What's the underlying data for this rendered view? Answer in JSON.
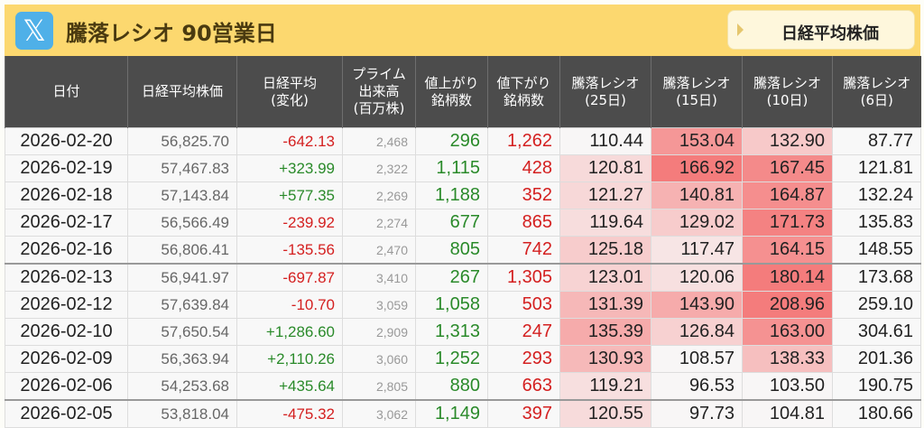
{
  "banner": {
    "logo": "x-logo",
    "title": "騰落レシオ 90営業日",
    "nav_button": "日経平均株価"
  },
  "headers": [
    "日付",
    "日経平均株価",
    "日経平均\n(変化)",
    "プライム\n出来高\n(百万株)",
    "値上がり\n銘柄数",
    "値下がり\n銘柄数",
    "騰落レシオ\n(25日)",
    "騰落レシオ\n(15日)",
    "騰落レシオ\n(10日)",
    "騰落レシオ\n(6日)"
  ],
  "colors": {
    "header_bg": "#4c4c4c",
    "banner_bg": "#fcd86f",
    "up": "#2a8a2a",
    "down": "#d42020",
    "heat_high": "#f47c7c",
    "heat_low": "#e6e8f5"
  },
  "rows": [
    {
      "date": "2026-02-20",
      "price": "56,825.70",
      "change": "-642.13",
      "volume": "2,468",
      "up": "296",
      "down": "1,262",
      "r25": "110.44",
      "r15": "153.04",
      "r10": "132.90",
      "r6": "87.77"
    },
    {
      "date": "2026-02-19",
      "price": "57,467.83",
      "change": "+323.99",
      "volume": "2,322",
      "up": "1,115",
      "down": "428",
      "r25": "120.81",
      "r15": "166.92",
      "r10": "167.45",
      "r6": "121.81"
    },
    {
      "date": "2026-02-18",
      "price": "57,143.84",
      "change": "+577.35",
      "volume": "2,269",
      "up": "1,188",
      "down": "352",
      "r25": "121.27",
      "r15": "140.81",
      "r10": "164.87",
      "r6": "132.24"
    },
    {
      "date": "2026-02-17",
      "price": "56,566.49",
      "change": "-239.92",
      "volume": "2,274",
      "up": "677",
      "down": "865",
      "r25": "119.64",
      "r15": "129.02",
      "r10": "171.73",
      "r6": "135.83"
    },
    {
      "date": "2026-02-16",
      "price": "56,806.41",
      "change": "-135.56",
      "volume": "2,470",
      "up": "805",
      "down": "742",
      "r25": "125.18",
      "r15": "117.47",
      "r10": "164.15",
      "r6": "148.55"
    },
    {
      "date": "2026-02-13",
      "price": "56,941.97",
      "change": "-697.87",
      "volume": "3,410",
      "up": "267",
      "down": "1,305",
      "r25": "123.01",
      "r15": "120.06",
      "r10": "180.14",
      "r6": "173.68"
    },
    {
      "date": "2026-02-12",
      "price": "57,639.84",
      "change": "-10.70",
      "volume": "3,059",
      "up": "1,058",
      "down": "503",
      "r25": "131.39",
      "r15": "143.90",
      "r10": "208.96",
      "r6": "259.10"
    },
    {
      "date": "2026-02-10",
      "price": "57,650.54",
      "change": "+1,286.60",
      "volume": "2,909",
      "up": "1,313",
      "down": "247",
      "r25": "135.39",
      "r15": "126.84",
      "r10": "163.00",
      "r6": "304.61"
    },
    {
      "date": "2026-02-09",
      "price": "56,363.94",
      "change": "+2,110.26",
      "volume": "3,060",
      "up": "1,252",
      "down": "293",
      "r25": "130.93",
      "r15": "108.57",
      "r10": "138.33",
      "r6": "201.36"
    },
    {
      "date": "2026-02-06",
      "price": "54,253.68",
      "change": "+435.64",
      "volume": "2,805",
      "up": "880",
      "down": "663",
      "r25": "119.21",
      "r15": "96.53",
      "r10": "103.50",
      "r6": "190.75"
    },
    {
      "date": "2026-02-05",
      "price": "53,818.04",
      "change": "-475.32",
      "volume": "3,062",
      "up": "1,149",
      "down": "397",
      "r25": "120.55",
      "r15": "97.73",
      "r10": "104.81",
      "r6": "180.66"
    }
  ]
}
